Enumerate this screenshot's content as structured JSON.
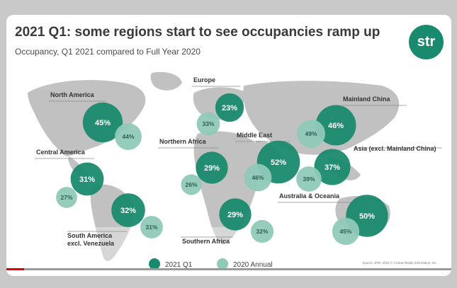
{
  "slide": {
    "title": "2021 Q1: some regions start to see occupancies ramp up",
    "subtitle": "Occupancy, Q1 2021 compared to Full Year 2020",
    "logo_text": "str",
    "source": "Source: STR. 2021 © CoStar Realty Information, Inc."
  },
  "colors": {
    "q1": "#1a8a6e",
    "annual": "#8fc9b8",
    "map": "#b7b7b7",
    "logo": "#1a8a6e"
  },
  "video": {
    "progress": 0.04
  },
  "chart_data": {
    "type": "bubble",
    "title": "2021 Q1: some regions start to see occupancies ramp up",
    "subtitle": "Occupancy, Q1 2021 compared to Full Year 2020",
    "legend": {
      "placement": "bottom-center",
      "entries": [
        "2021 Q1",
        "2020 Annual"
      ]
    },
    "unit": "%",
    "series": [
      {
        "name": "2021 Q1",
        "color": "#1a8a6e"
      },
      {
        "name": "2020 Annual",
        "color": "#8fc9b8"
      }
    ],
    "regions": [
      {
        "name": "North America",
        "q1": 45,
        "q1_label": "45%",
        "annual": 44,
        "annual_label": "44%"
      },
      {
        "name": "Central America",
        "q1": 31,
        "q1_label": "31%",
        "annual": 27,
        "annual_label": "27%"
      },
      {
        "name": "South America excl. Venezuela",
        "q1": 32,
        "q1_label": "32%",
        "annual": 31,
        "annual_label": "31%"
      },
      {
        "name": "Europe",
        "q1": 23,
        "q1_label": "23%",
        "annual": 33,
        "annual_label": "33%"
      },
      {
        "name": "Northern Africa",
        "q1": 29,
        "q1_label": "29%",
        "annual": 26,
        "annual_label": "26%"
      },
      {
        "name": "Southern Africa",
        "q1": 29,
        "q1_label": "29%",
        "annual": 32,
        "annual_label": "32%"
      },
      {
        "name": "Middle East",
        "q1": 52,
        "q1_label": "52%",
        "annual": 46,
        "annual_label": "46%"
      },
      {
        "name": "Mainland China",
        "q1": 46,
        "q1_label": "46%",
        "annual": 49,
        "annual_label": "49%"
      },
      {
        "name": "Asia (excl. Mainland China)",
        "q1": 37,
        "q1_label": "37%",
        "annual": 39,
        "annual_label": "39%"
      },
      {
        "name": "Australia & Oceania",
        "q1": 50,
        "q1_label": "50%",
        "annual": 45,
        "annual_label": "45%"
      }
    ]
  }
}
